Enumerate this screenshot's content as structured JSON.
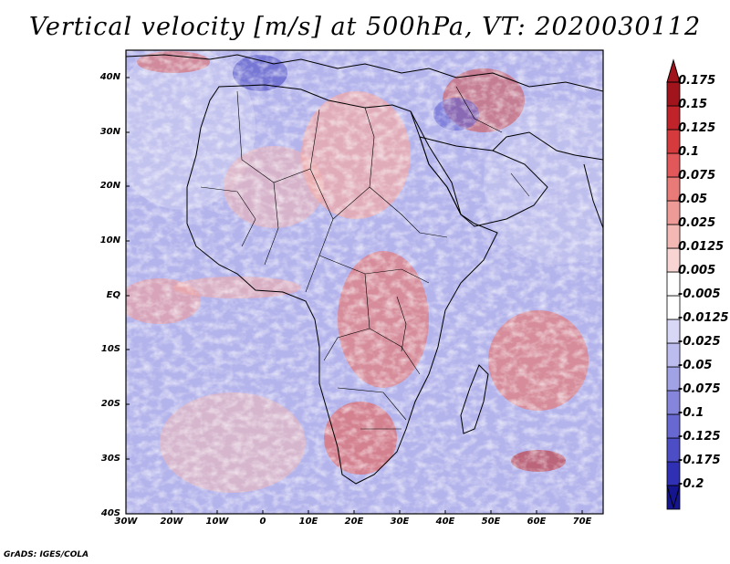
{
  "title": "Vertical velocity [m/s] at 500hPa, VT: 2020030112",
  "credit": "GrADS: IGES/COLA",
  "lat_labels": [
    "40N",
    "30N",
    "20N",
    "10N",
    "EQ",
    "10S",
    "20S",
    "30S",
    "40S"
  ],
  "lon_labels": [
    "30W",
    "20W",
    "10W",
    "0",
    "10E",
    "20E",
    "30E",
    "40E",
    "50E",
    "60E",
    "70E"
  ],
  "colorbar": {
    "labels": [
      "0.175",
      "0.15",
      "0.125",
      "0.1",
      "0.075",
      "0.05",
      "0.025",
      "0.0125",
      "0.005",
      "-0.005",
      "-0.0125",
      "-0.025",
      "-0.05",
      "-0.075",
      "-0.1",
      "-0.125",
      "-0.175",
      "-0.2"
    ],
    "colors": [
      "#a1141c",
      "#c0232a",
      "#d53a3c",
      "#e2585a",
      "#e87a78",
      "#ee9b98",
      "#f3b8b4",
      "#f8d5d2",
      "#ffffff",
      "#ffffff",
      "#d8d8f6",
      "#bcbcef",
      "#a1a1e6",
      "#8585dc",
      "#6868d2",
      "#4d4dc6",
      "#3030b4",
      "#15158f"
    ]
  },
  "chart_data": {
    "type": "heatmap",
    "title": "Vertical velocity [m/s] at 500hPa, VT: 2020030112",
    "variable": "Vertical velocity",
    "units": "m/s",
    "level": "500hPa",
    "valid_time": "2020030112",
    "lon_range": [
      -30,
      75
    ],
    "lat_range": [
      -40,
      45
    ],
    "contour_levels": [
      -0.2,
      -0.175,
      -0.125,
      -0.1,
      -0.075,
      -0.05,
      -0.025,
      -0.0125,
      -0.005,
      0.005,
      0.0125,
      0.025,
      0.05,
      0.075,
      0.1,
      0.125,
      0.15,
      0.175
    ]
  }
}
